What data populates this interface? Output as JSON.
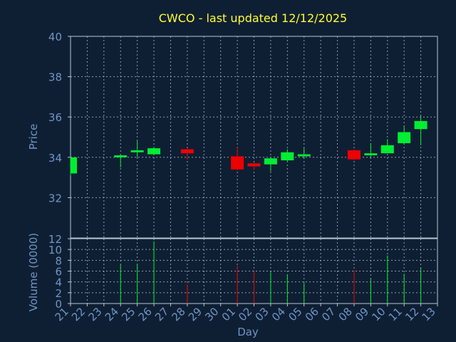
{
  "colors": {
    "background": "#0f1f33",
    "up": "#00ee33",
    "down": "#ee0000",
    "grid": "#b8c6d6",
    "title": "#ffff33",
    "axis_text": "#6f95c7"
  },
  "chart_data": {
    "type": "candlestick",
    "title": "CWCO - last updated 12/12/2025",
    "xlabel": "Day",
    "ylabel_price": "Price",
    "ylabel_volume": "Volume (0000)",
    "price_ylim": [
      30,
      40
    ],
    "price_ticks": [
      "40",
      "38",
      "36",
      "34",
      "32"
    ],
    "volume_ylim": [
      0,
      12
    ],
    "volume_ticks": [
      "12",
      "10",
      "8",
      "6",
      "4",
      "2",
      "0"
    ],
    "grid": true,
    "x_ticks": [
      "21",
      "22",
      "23",
      "24",
      "25",
      "26",
      "27",
      "28",
      "29",
      "30",
      "01",
      "02",
      "03",
      "04",
      "05",
      "06",
      "07",
      "08",
      "09",
      "10",
      "11",
      "12",
      "13"
    ],
    "candles": [
      {
        "day": "21",
        "open": 33.2,
        "close": 34.0,
        "high": 34.0,
        "low": 33.1,
        "volume": 0,
        "direction": "up"
      },
      {
        "day": "24",
        "open": 34.0,
        "close": 34.1,
        "high": 34.1,
        "low": 33.5,
        "volume": 7.2,
        "direction": "up"
      },
      {
        "day": "25",
        "open": 34.25,
        "close": 34.35,
        "high": 34.8,
        "low": 34.0,
        "volume": 7.3,
        "direction": "up"
      },
      {
        "day": "26",
        "open": 34.15,
        "close": 34.45,
        "high": 34.5,
        "low": 34.1,
        "volume": 11.5,
        "direction": "up"
      },
      {
        "day": "28",
        "open": 34.4,
        "close": 34.2,
        "high": 34.45,
        "low": 33.9,
        "volume": 3.5,
        "direction": "down"
      },
      {
        "day": "01",
        "open": 34.05,
        "close": 33.4,
        "high": 34.5,
        "low": 33.35,
        "volume": 7.0,
        "direction": "down"
      },
      {
        "day": "02",
        "open": 33.7,
        "close": 33.55,
        "high": 33.7,
        "low": 33.4,
        "volume": 6.0,
        "direction": "down"
      },
      {
        "day": "03",
        "open": 33.65,
        "close": 33.95,
        "high": 34.0,
        "low": 33.3,
        "volume": 5.8,
        "direction": "up"
      },
      {
        "day": "04",
        "open": 33.85,
        "close": 34.25,
        "high": 34.4,
        "low": 33.8,
        "volume": 5.4,
        "direction": "up"
      },
      {
        "day": "05",
        "open": 34.05,
        "close": 34.15,
        "high": 34.45,
        "low": 33.95,
        "volume": 3.8,
        "direction": "up"
      },
      {
        "day": "08",
        "open": 34.35,
        "close": 33.9,
        "high": 34.4,
        "low": 33.85,
        "volume": 6.2,
        "direction": "down"
      },
      {
        "day": "09",
        "open": 34.1,
        "close": 34.2,
        "high": 34.7,
        "low": 34.0,
        "volume": 4.6,
        "direction": "up"
      },
      {
        "day": "10",
        "open": 34.2,
        "close": 34.6,
        "high": 34.9,
        "low": 34.2,
        "volume": 8.9,
        "direction": "up"
      },
      {
        "day": "11",
        "open": 34.7,
        "close": 35.25,
        "high": 35.55,
        "low": 34.65,
        "volume": 5.5,
        "direction": "up"
      },
      {
        "day": "12",
        "open": 35.4,
        "close": 35.8,
        "high": 36.05,
        "low": 34.6,
        "volume": 6.6,
        "direction": "up"
      }
    ]
  }
}
